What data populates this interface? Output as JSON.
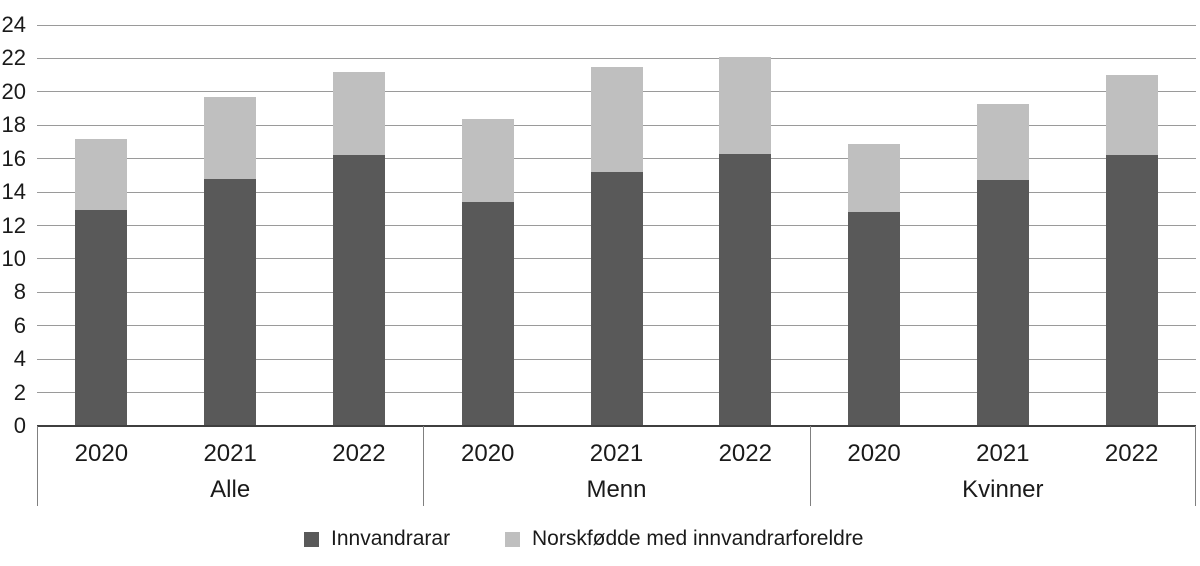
{
  "chart_data": {
    "type": "bar",
    "stacked": true,
    "title": "",
    "xlabel": "",
    "ylabel": "",
    "groups": [
      "Alle",
      "Menn",
      "Kvinner"
    ],
    "years": [
      "2020",
      "2021",
      "2022"
    ],
    "series": [
      {
        "name": "Innvandrarar",
        "color": "#595959",
        "values": [
          12.9,
          14.8,
          16.2,
          13.4,
          15.2,
          16.3,
          12.8,
          14.7,
          16.2
        ]
      },
      {
        "name": "Norskfødde med innvandrarforeldre",
        "color": "#bfbfbf",
        "values": [
          4.3,
          4.9,
          5.0,
          5.0,
          6.3,
          5.8,
          4.1,
          4.6,
          4.8
        ]
      }
    ],
    "stack_totals": [
      17.2,
      19.7,
      21.2,
      18.4,
      21.5,
      22.1,
      16.9,
      19.3,
      21.0
    ],
    "ylim": [
      0,
      24
    ],
    "ytick_step": 2,
    "yticks": [
      "0",
      "2",
      "4",
      "6",
      "8",
      "10",
      "12",
      "14",
      "16",
      "18",
      "20",
      "22",
      "24"
    ],
    "grid": "horizontal",
    "legend_position": "bottom-center"
  },
  "colors": {
    "background": "#ffffff",
    "gridline": "#9a9a9a",
    "axis_line": "#3f3f3f",
    "separator": "#808080",
    "text": "#1a1a1a",
    "series_dark": "#595959",
    "series_light": "#bfbfbf"
  }
}
